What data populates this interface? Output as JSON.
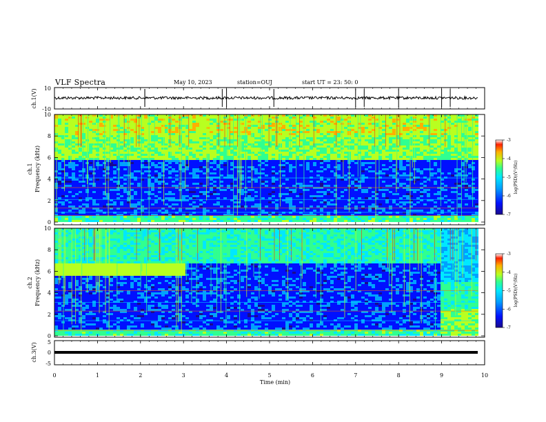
{
  "header": {
    "title": "VLF Spectra",
    "date": "May 10, 2023",
    "station": "station=OUJ",
    "start": "start  UT  =   23: 50: 0"
  },
  "chart_data": [
    {
      "type": "line",
      "ylabel": "ch.1(V)",
      "ylim": [
        -10,
        10
      ],
      "yticks": [
        "10",
        "-10"
      ],
      "x_range_min": [
        0,
        10
      ],
      "baseline": 0,
      "spike_times_min": [
        2.1,
        2.1,
        3.9,
        4.0,
        5.1,
        7.0,
        7.2,
        8.0,
        9.0,
        9.2
      ]
    },
    {
      "type": "heatmap",
      "ylabel": "ch.1\nFrequency (kHz)",
      "ylim": [
        0,
        10
      ],
      "yticks": [
        "0",
        "2",
        "4",
        "6",
        "8",
        "10"
      ],
      "colorbar": {
        "label": "log(PSD)(V²/Hz)",
        "range": [
          -7,
          -3
        ],
        "ticks": [
          "-3",
          "-4",
          "-5",
          "-6",
          "-7"
        ]
      },
      "features": {
        "quiet_band_khz": [
          0.5,
          5.8
        ],
        "noisy_band_khz": [
          5.8,
          10
        ]
      }
    },
    {
      "type": "heatmap",
      "ylabel": "ch.2\nFrequency (kHz)",
      "ylim": [
        0,
        10
      ],
      "yticks": [
        "0",
        "2",
        "4",
        "6",
        "8",
        "10"
      ],
      "colorbar": {
        "label": "log(PSD)(V²/Hz)",
        "range": [
          -7,
          -3
        ],
        "ticks": [
          "-3",
          "-4",
          "-5",
          "-6",
          "-7"
        ]
      },
      "features": {
        "strong_band_khz": [
          5.5,
          6.8
        ],
        "strong_band_until_min": 3.0,
        "change_at_min": 8.95
      }
    },
    {
      "type": "line",
      "ylabel": "ch.3(V)",
      "ylim": [
        -5,
        5
      ],
      "yticks": [
        "5",
        "0",
        "-5"
      ],
      "constant_value": -1.5
    }
  ],
  "xaxis": {
    "label": "Time (min)",
    "range": [
      0,
      10
    ],
    "ticks": [
      "0",
      "1",
      "2",
      "3",
      "4",
      "5",
      "6",
      "7",
      "8",
      "9",
      "10"
    ]
  },
  "colors": {
    "frame": "#000000",
    "colormap": [
      "#1a0a8c",
      "#0010ff",
      "#00a0ff",
      "#00e8ff",
      "#30ff90",
      "#b8ff20",
      "#ffb000",
      "#ff2000",
      "#ffffff"
    ]
  }
}
